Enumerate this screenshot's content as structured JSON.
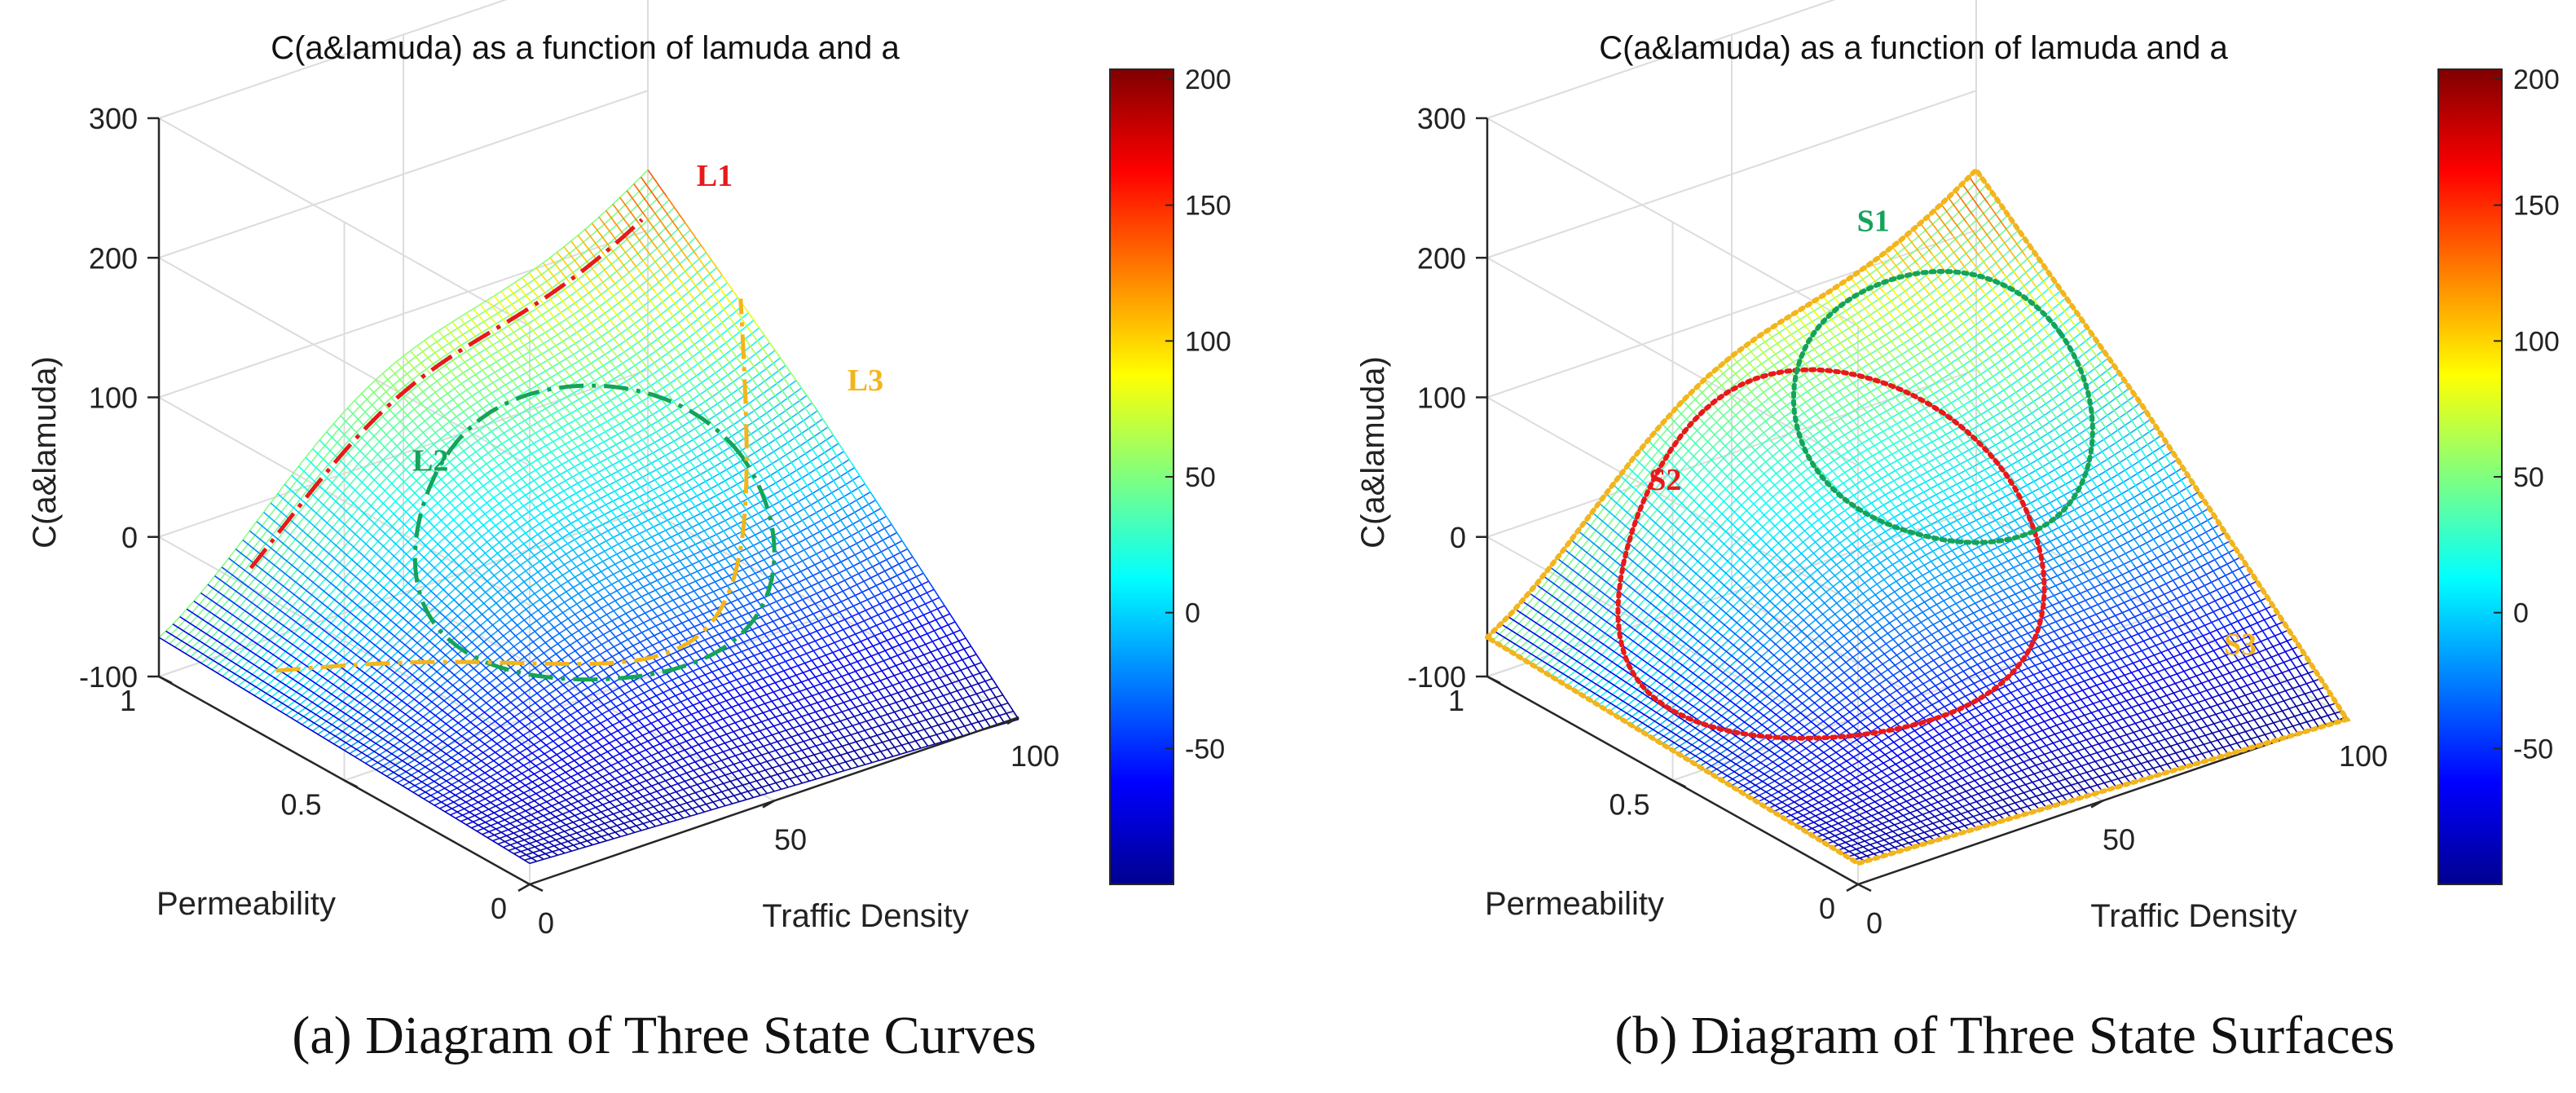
{
  "chart_data": [
    {
      "type": "surface",
      "panel": "a",
      "title": "C(a&lamuda) as a function of lamuda and a",
      "caption": "(a) Diagram of Three State Curves",
      "xlabel": "Traffic Density",
      "ylabel": "Permeability",
      "zlabel": "C(a&lamuda)",
      "x_ticks": [
        "0",
        "50",
        "100"
      ],
      "y_ticks": [
        "0",
        "0.5",
        "1"
      ],
      "z_ticks": [
        "-100",
        "0",
        "100",
        "200",
        "300"
      ],
      "xlim": [
        0,
        100
      ],
      "ylim": [
        0,
        1
      ],
      "zlim": [
        -100,
        300
      ],
      "colormap": "jet",
      "colorbar": {
        "range": [
          -100,
          200
        ],
        "ticks": [
          "200",
          "150",
          "100",
          "50",
          "0",
          "-50"
        ]
      },
      "curves": [
        {
          "name": "L1",
          "color": "#e8191a",
          "style": "dash-dot"
        },
        {
          "name": "L2",
          "color": "#15a35a",
          "style": "dash-dot"
        },
        {
          "name": "L3",
          "color": "#f2b51b",
          "style": "dash-dot"
        }
      ]
    },
    {
      "type": "surface",
      "panel": "b",
      "title": "C(a&lamuda) as a function of lamuda and a",
      "caption": "(b) Diagram of Three State Surfaces",
      "xlabel": "Traffic Density",
      "ylabel": "Permeability",
      "zlabel": "C(a&lamuda)",
      "x_ticks": [
        "0",
        "50",
        "100"
      ],
      "y_ticks": [
        "0",
        "0.5",
        "1"
      ],
      "z_ticks": [
        "-100",
        "0",
        "100",
        "200",
        "300"
      ],
      "xlim": [
        0,
        100
      ],
      "ylim": [
        0,
        1
      ],
      "zlim": [
        -100,
        300
      ],
      "colormap": "jet",
      "colorbar": {
        "range": [
          -100,
          200
        ],
        "ticks": [
          "200",
          "150",
          "100",
          "50",
          "0",
          "-50"
        ]
      },
      "regions": [
        {
          "name": "S1",
          "color": "#15a35a",
          "style": "dotted-boundary"
        },
        {
          "name": "S2",
          "color": "#e8191a",
          "style": "dotted-boundary"
        },
        {
          "name": "S3",
          "color": "#f2b51b",
          "style": "dotted-boundary"
        }
      ]
    }
  ]
}
